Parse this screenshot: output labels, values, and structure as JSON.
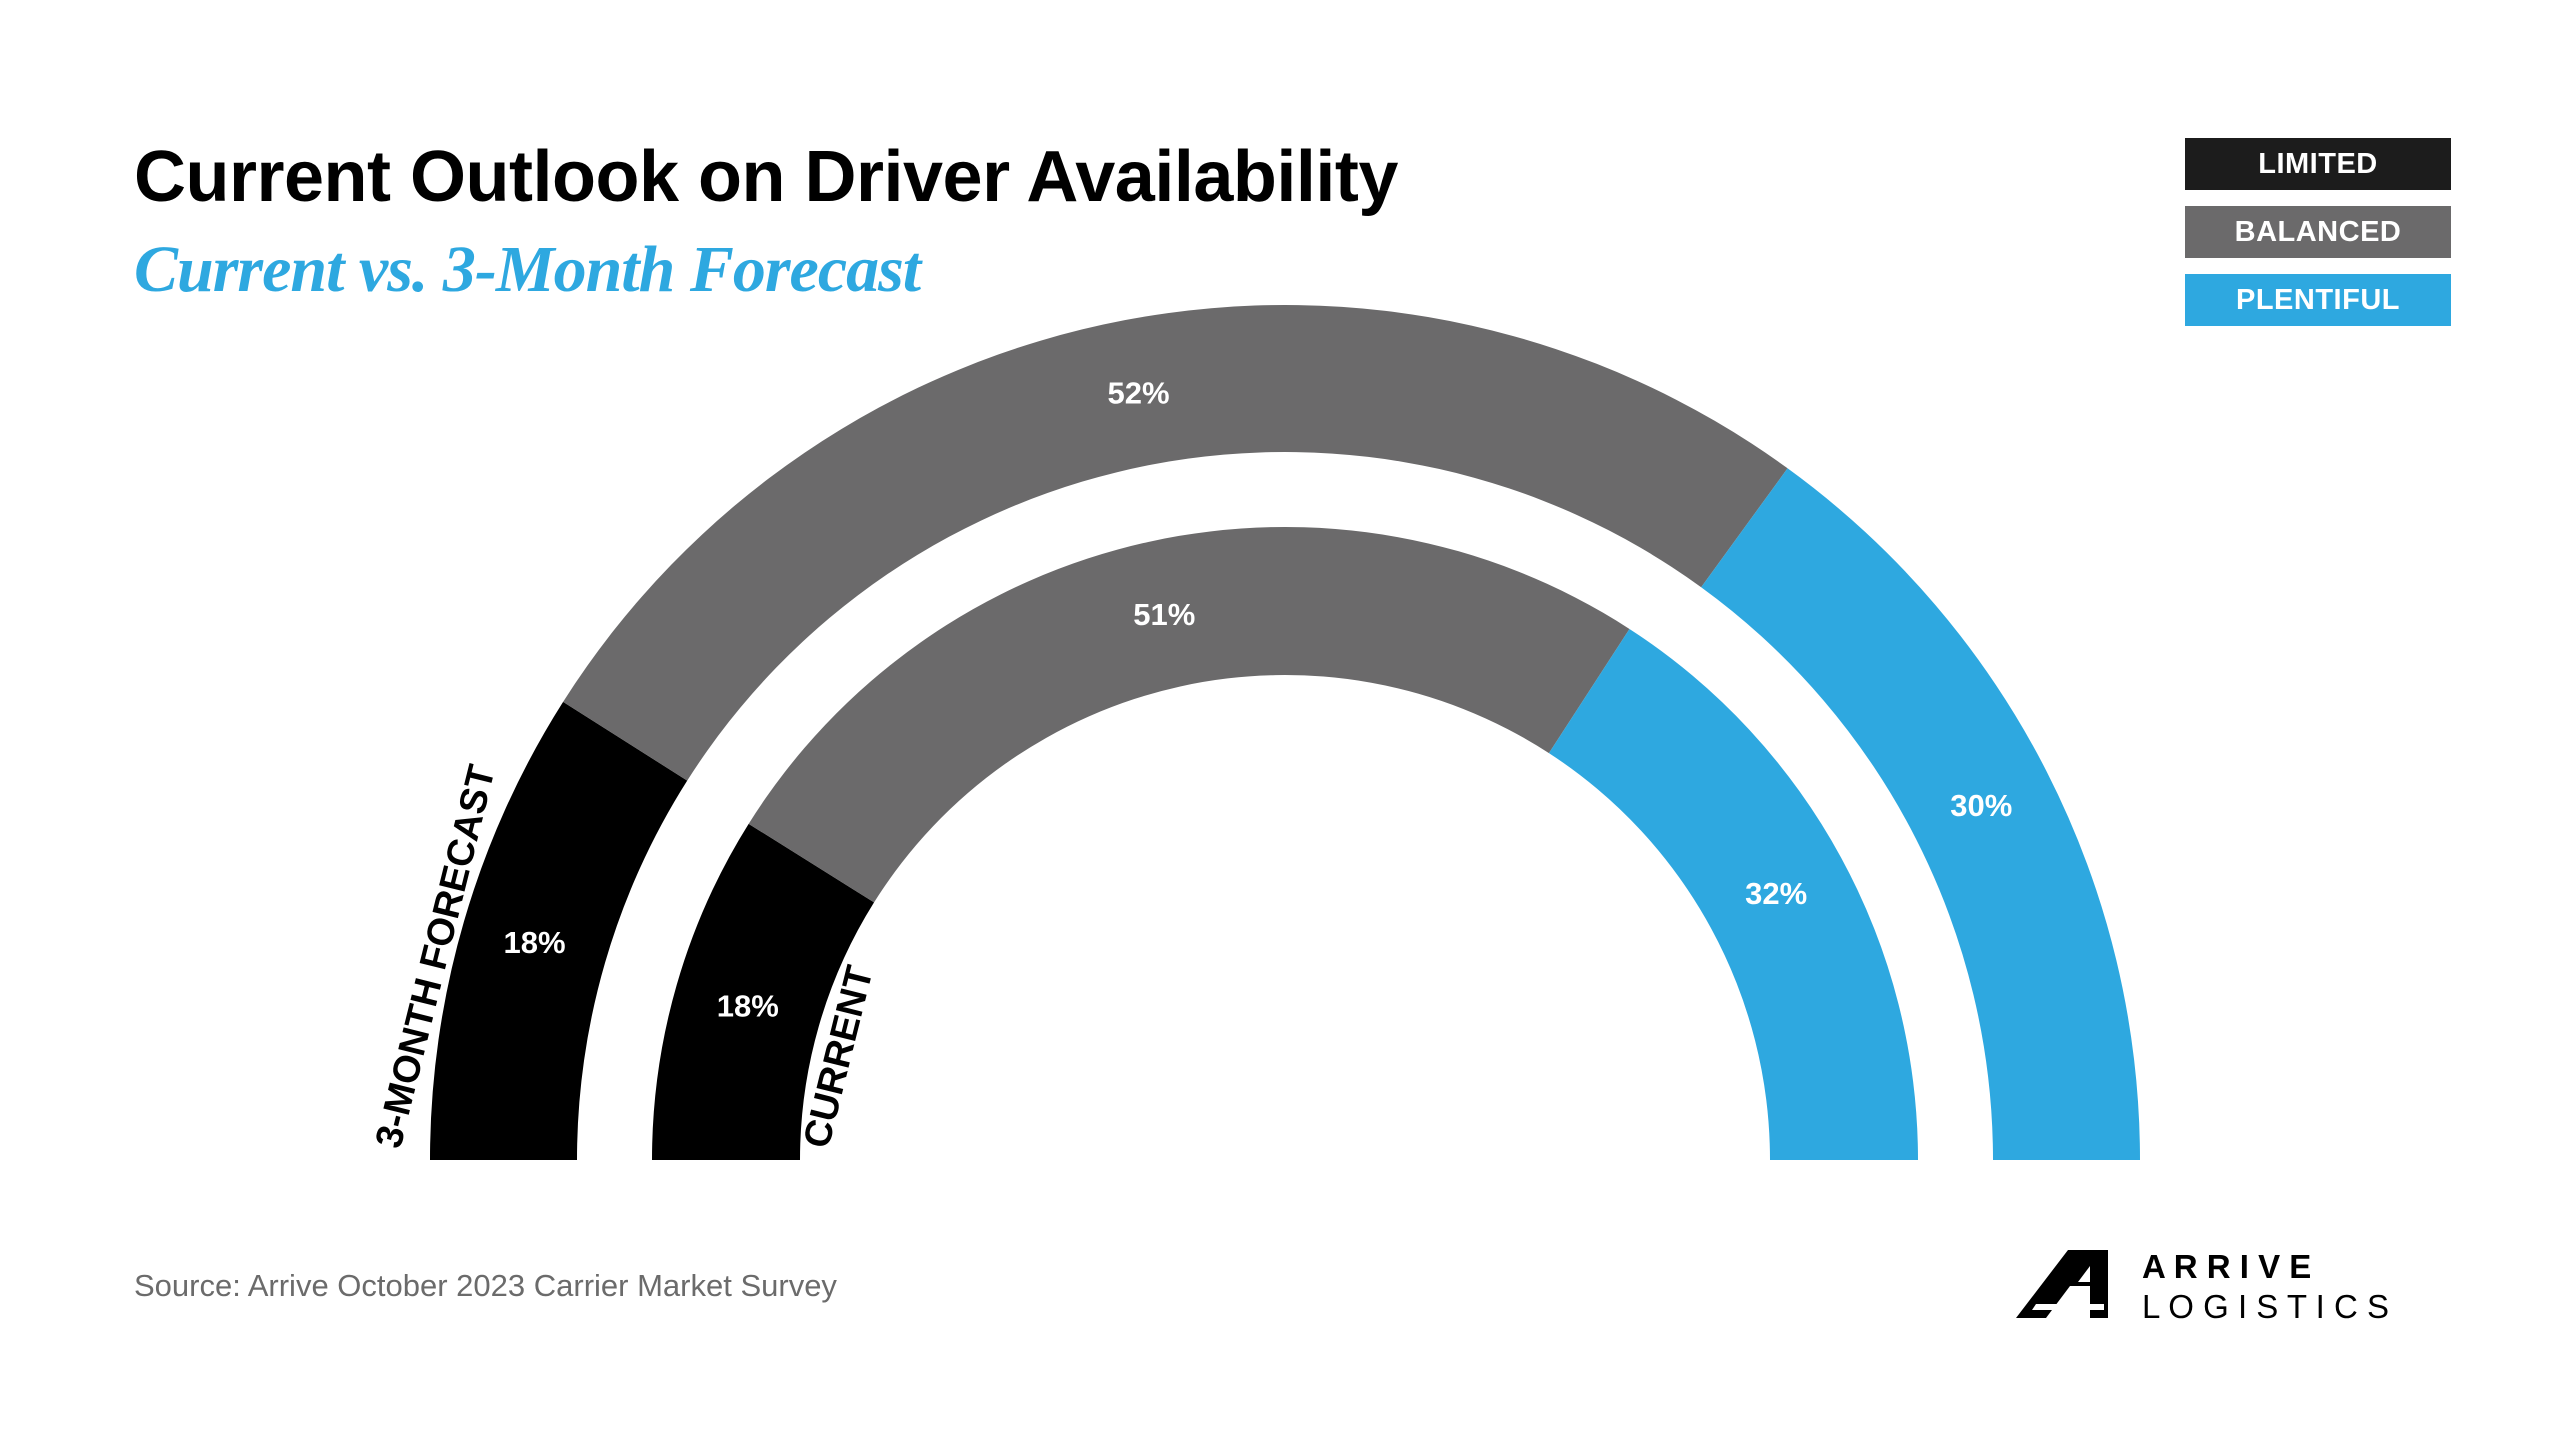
{
  "colors": {
    "limited": "#000000",
    "balanced": "#6b6a6b",
    "plentiful": "#2ea8e0",
    "title": "#000000",
    "subtitle": "#2ea8e0"
  },
  "chart_data": {
    "type": "donut-semicircle",
    "title": "Current Outlook on Driver Availability",
    "subtitle": "Current vs. 3-Month Forecast",
    "categories": [
      "LIMITED",
      "BALANCED",
      "PLENTIFUL"
    ],
    "legend": {
      "placement": "top-right",
      "items": [
        {
          "label": "LIMITED",
          "color": "#000000"
        },
        {
          "label": "BALANCED",
          "color": "#6b6a6b"
        },
        {
          "label": "PLENTIFUL",
          "color": "#2ea8e0"
        }
      ]
    },
    "series": [
      {
        "name": "3-MONTH FORECAST",
        "values": [
          18,
          52,
          30
        ],
        "labels": [
          "18%",
          "52%",
          "30%"
        ]
      },
      {
        "name": "CURRENT",
        "values": [
          18,
          51,
          32
        ],
        "labels": [
          "18%",
          "51%",
          "32%"
        ]
      }
    ],
    "source": "Source: Arrive October 2023 Carrier Market Survey"
  },
  "logo": {
    "line1": "A R R I V E",
    "line2": "L O G I S T I C S"
  }
}
